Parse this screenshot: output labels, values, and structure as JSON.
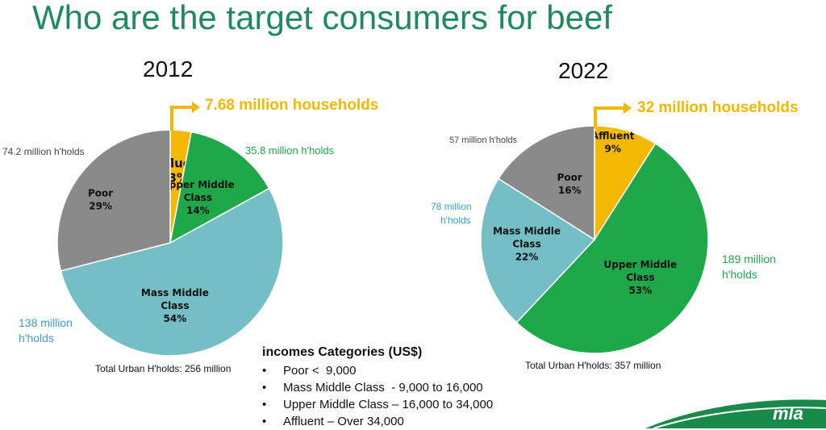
{
  "title": "Who are the target consumers for beef",
  "colors": {
    "title": "#1f8a5b",
    "affluent": "#f5b800",
    "upper_middle": "#1fa84a",
    "mass_middle": "#74bfc6",
    "poor": "#8a8a8a"
  },
  "chart_data": [
    {
      "type": "pie",
      "title": "2012",
      "start_angle_deg": 0,
      "slices": [
        {
          "key": "affluent",
          "lines": [
            "Affluent",
            "3%"
          ],
          "value": 3,
          "color": "#f5b800"
        },
        {
          "key": "upper_middle",
          "lines": [
            "Upper Middle",
            "Class",
            "14%"
          ],
          "value": 14,
          "color": "#1fa84a"
        },
        {
          "key": "mass_middle",
          "lines": [
            "Mass Middle",
            "Class",
            "54%"
          ],
          "value": 54,
          "color": "#74bfc6"
        },
        {
          "key": "poor",
          "lines": [
            "Poor",
            "29%"
          ],
          "value": 29,
          "color": "#8a8a8a"
        }
      ],
      "annotations": {
        "affluent": "7.68 million households",
        "upper_middle": "35.8 million h'holds",
        "mass_middle": [
          "138 million",
          "h'holds"
        ],
        "poor": "74.2 million h'holds"
      },
      "total": "Total Urban H'holds: 256 million"
    },
    {
      "type": "pie",
      "title": "2022",
      "start_angle_deg": 0,
      "slices": [
        {
          "key": "affluent",
          "lines": [
            "Affluent",
            "9%"
          ],
          "value": 9,
          "color": "#f5b800"
        },
        {
          "key": "upper_middle",
          "lines": [
            "Upper Middle",
            "Class",
            "53%"
          ],
          "value": 53,
          "color": "#1fa84a"
        },
        {
          "key": "mass_middle",
          "lines": [
            "Mass Middle",
            "Class",
            "22%"
          ],
          "value": 22,
          "color": "#74bfc6"
        },
        {
          "key": "poor",
          "lines": [
            "Poor",
            "16%"
          ],
          "value": 16,
          "color": "#8a8a8a"
        }
      ],
      "annotations": {
        "affluent": "32 million households",
        "upper_middle": [
          "189 million",
          "h'holds"
        ],
        "mass_middle": [
          "78 million",
          "h'holds"
        ],
        "poor": "57 million h'holds"
      },
      "total": "Total Urban H'holds: 357 million"
    }
  ],
  "legend": {
    "title": "incomes Categories (US$)",
    "items": [
      "Poor <  9,000",
      "Mass Middle Class  - 9,000 to 16,000",
      "Upper Middle Class – 16,000 to 34,000",
      "Affluent – Over 34,000"
    ]
  },
  "logo": {
    "text": "mla"
  }
}
